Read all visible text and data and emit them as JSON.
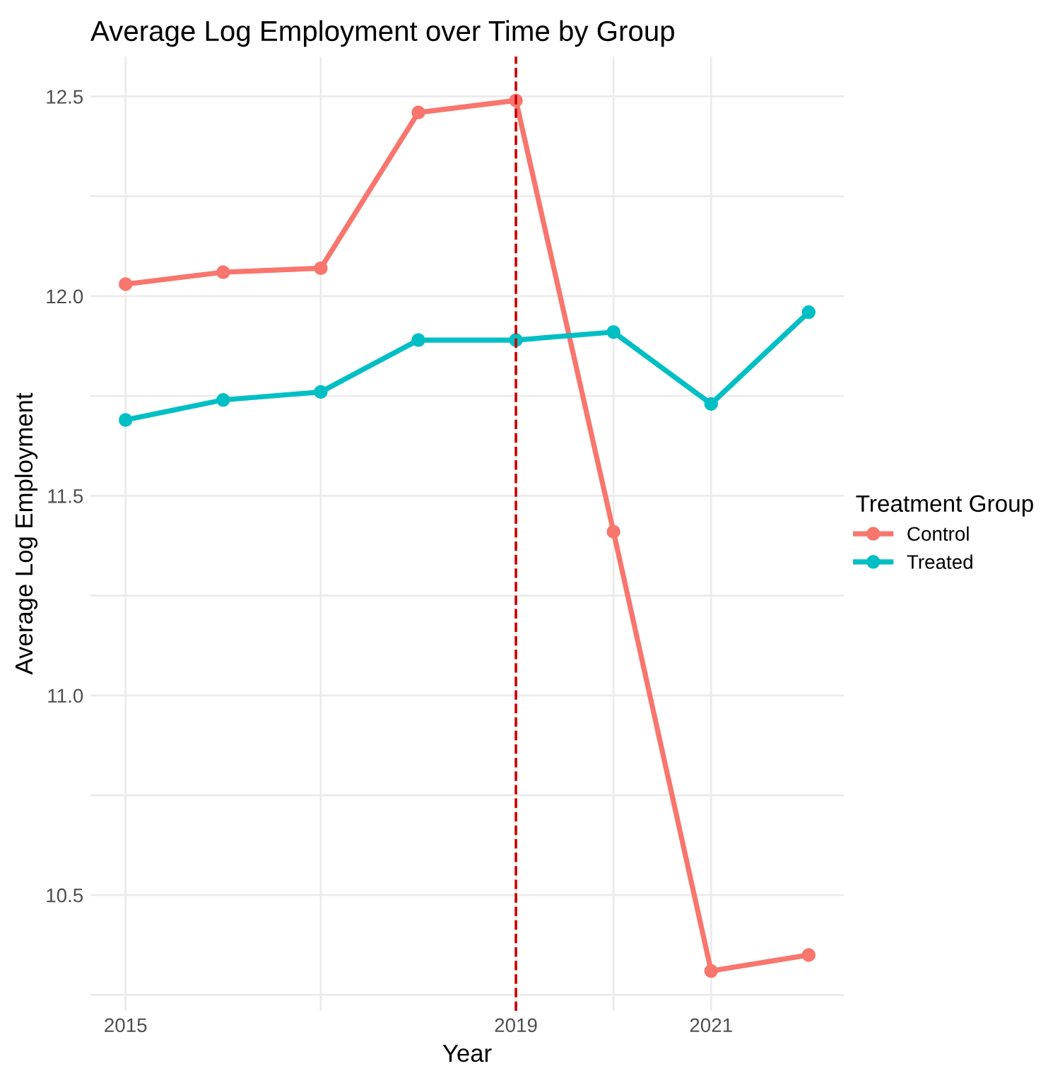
{
  "chart_data": {
    "type": "line",
    "title": "Average Log Employment over Time by Group",
    "xlabel": "Year",
    "ylabel": "Average Log Employment",
    "legend_title": "Treatment Group",
    "x": [
      2015,
      2016,
      2017,
      2018,
      2019,
      2020,
      2021,
      2022
    ],
    "series": [
      {
        "name": "Control",
        "color": "#f8766d",
        "values": [
          12.03,
          12.06,
          12.07,
          12.46,
          12.49,
          11.41,
          10.31,
          10.35
        ]
      },
      {
        "name": "Treated",
        "color": "#00bfc4",
        "values": [
          11.69,
          11.74,
          11.76,
          11.89,
          11.89,
          11.91,
          11.73,
          11.96
        ]
      }
    ],
    "xlim": [
      2014.64,
      2022.36
    ],
    "ylim": [
      10.21,
      12.6
    ],
    "xticks": [
      2015,
      {
        "value": 2017,
        "label": null
      },
      2019,
      {
        "value": 2020,
        "label": null
      },
      2021
    ],
    "yticks": [
      {
        "value": 10.25,
        "label": null
      },
      10.5,
      {
        "value": 10.75,
        "label": null
      },
      {
        "value": 11.0,
        "label": "11.0"
      },
      {
        "value": 11.25,
        "label": null
      },
      11.5,
      {
        "value": 11.75,
        "label": null
      },
      {
        "value": 12.0,
        "label": "12.0"
      },
      {
        "value": 12.25,
        "label": null
      },
      12.5
    ],
    "ref_lines": [
      {
        "axis": "x",
        "value": 2019,
        "color": "#cc0000",
        "line_style": "dashed"
      }
    ],
    "grid": true,
    "legend": "right",
    "marker": "circle",
    "line_style": "solid"
  }
}
